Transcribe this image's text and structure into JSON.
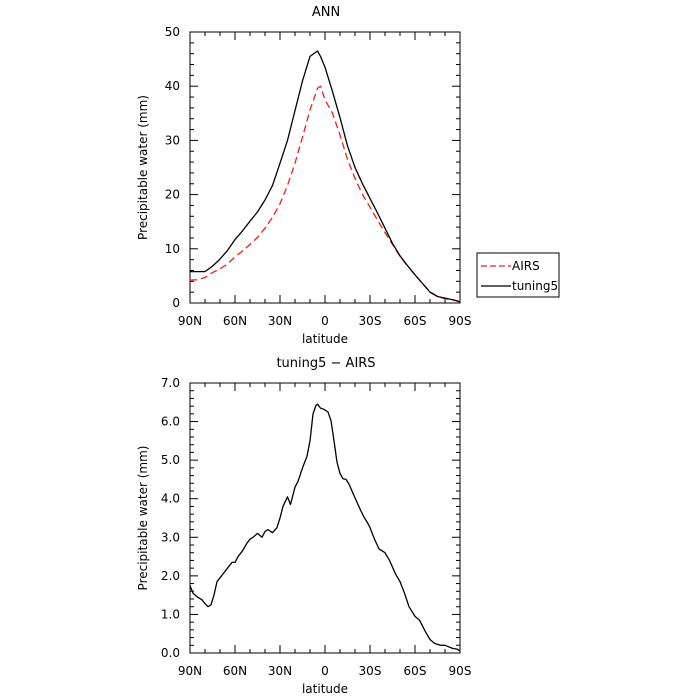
{
  "chart_data": [
    {
      "type": "line",
      "title": "ANN",
      "xlabel": "latitude",
      "ylabel": "Precipitable water (mm)",
      "xlim": [
        90,
        -90
      ],
      "ylim": [
        0,
        50
      ],
      "xticks": [
        90,
        60,
        30,
        0,
        -30,
        -60,
        -90
      ],
      "xtick_labels": [
        "90N",
        "60N",
        "30N",
        "0",
        "30S",
        "60S",
        "90S"
      ],
      "yticks": [
        0,
        10,
        20,
        30,
        40,
        50
      ],
      "ytick_labels": [
        "0",
        "10",
        "20",
        "30",
        "40",
        "50"
      ],
      "legend_position": "right",
      "legend_title": "",
      "series": [
        {
          "name": "AIRS",
          "color": "#e8211b",
          "dash": "dashed",
          "x": [
            90,
            85,
            80,
            75,
            70,
            65,
            60,
            55,
            50,
            45,
            40,
            35,
            30,
            25,
            20,
            15,
            10,
            5,
            3,
            0,
            -5,
            -10,
            -15,
            -20,
            -25,
            -30,
            -35,
            -40,
            -45,
            -50,
            -55,
            -60,
            -65,
            -70,
            -75,
            -80,
            -85,
            -90
          ],
          "y": [
            4.2,
            4.3,
            4.7,
            5.6,
            6.3,
            7.2,
            8.5,
            9.6,
            10.8,
            12.1,
            13.8,
            15.8,
            18.3,
            21.7,
            25.8,
            30.6,
            35.6,
            39.6,
            40.0,
            37.5,
            35.0,
            31.0,
            26.5,
            23.0,
            20.0,
            17.7,
            15.3,
            13.0,
            10.8,
            8.6,
            6.8,
            5.2,
            3.6,
            2.1,
            1.2,
            0.8,
            0.6,
            0.3
          ]
        },
        {
          "name": "tuning5",
          "color": "#000000",
          "dash": "solid",
          "x": [
            90,
            85,
            80,
            75,
            70,
            65,
            60,
            55,
            50,
            45,
            40,
            35,
            30,
            25,
            20,
            15,
            10,
            5,
            3,
            0,
            -5,
            -10,
            -15,
            -20,
            -25,
            -30,
            -35,
            -40,
            -45,
            -50,
            -55,
            -60,
            -65,
            -70,
            -75,
            -80,
            -85,
            -90
          ],
          "y": [
            5.8,
            5.8,
            5.8,
            6.8,
            8.1,
            9.7,
            11.7,
            13.3,
            15.1,
            16.8,
            19.0,
            21.7,
            25.8,
            30.0,
            35.5,
            41.0,
            45.5,
            46.5,
            45.5,
            43.5,
            39.0,
            34.2,
            29.0,
            25.0,
            22.0,
            19.3,
            16.6,
            13.8,
            11.0,
            8.7,
            6.9,
            5.2,
            3.6,
            2.0,
            1.2,
            0.9,
            0.6,
            0.2
          ]
        }
      ]
    },
    {
      "type": "line",
      "title": "tuning5 − AIRS",
      "xlabel": "latitude",
      "ylabel": "Precipitable water (mm)",
      "xlim": [
        90,
        -90
      ],
      "ylim": [
        0,
        7
      ],
      "xticks": [
        90,
        60,
        30,
        0,
        -30,
        -60,
        -90
      ],
      "xtick_labels": [
        "90N",
        "60N",
        "30N",
        "0",
        "30S",
        "60S",
        "90S"
      ],
      "yticks": [
        0,
        1,
        2,
        3,
        4,
        5,
        6,
        7
      ],
      "ytick_labels": [
        "0.0",
        "1.0",
        "2.0",
        "3.0",
        "4.0",
        "5.0",
        "6.0",
        "7.0"
      ],
      "series": [
        {
          "color": "#000000",
          "dash": "solid",
          "x": [
            90,
            88,
            85,
            82,
            80,
            78,
            76,
            74,
            72,
            70,
            67,
            64,
            62,
            60,
            58,
            55,
            52,
            50,
            48,
            45,
            42,
            40,
            38,
            35,
            32,
            30,
            28,
            25,
            23,
            20,
            18,
            15,
            12,
            10,
            8,
            6,
            5,
            3,
            1,
            0,
            -2,
            -4,
            -6,
            -8,
            -10,
            -12,
            -14,
            -16,
            -18,
            -20,
            -22,
            -24,
            -26,
            -28,
            -30,
            -33,
            -36,
            -40,
            -43,
            -47,
            -50,
            -53,
            -56,
            -60,
            -63,
            -67,
            -70,
            -73,
            -77,
            -80,
            -85,
            -88,
            -90
          ],
          "y": [
            1.75,
            1.55,
            1.45,
            1.38,
            1.28,
            1.2,
            1.25,
            1.5,
            1.85,
            1.95,
            2.1,
            2.25,
            2.35,
            2.35,
            2.5,
            2.65,
            2.85,
            2.95,
            3.0,
            3.1,
            3.0,
            3.15,
            3.2,
            3.12,
            3.25,
            3.5,
            3.8,
            4.05,
            3.85,
            4.3,
            4.45,
            4.8,
            5.1,
            5.5,
            6.2,
            6.42,
            6.45,
            6.35,
            6.32,
            6.3,
            6.25,
            6.02,
            5.5,
            4.95,
            4.65,
            4.52,
            4.5,
            4.38,
            4.2,
            4.02,
            3.85,
            3.68,
            3.52,
            3.4,
            3.25,
            2.95,
            2.7,
            2.6,
            2.4,
            2.05,
            1.85,
            1.55,
            1.2,
            0.95,
            0.85,
            0.55,
            0.35,
            0.25,
            0.2,
            0.2,
            0.12,
            0.1,
            0.05
          ]
        }
      ]
    }
  ]
}
